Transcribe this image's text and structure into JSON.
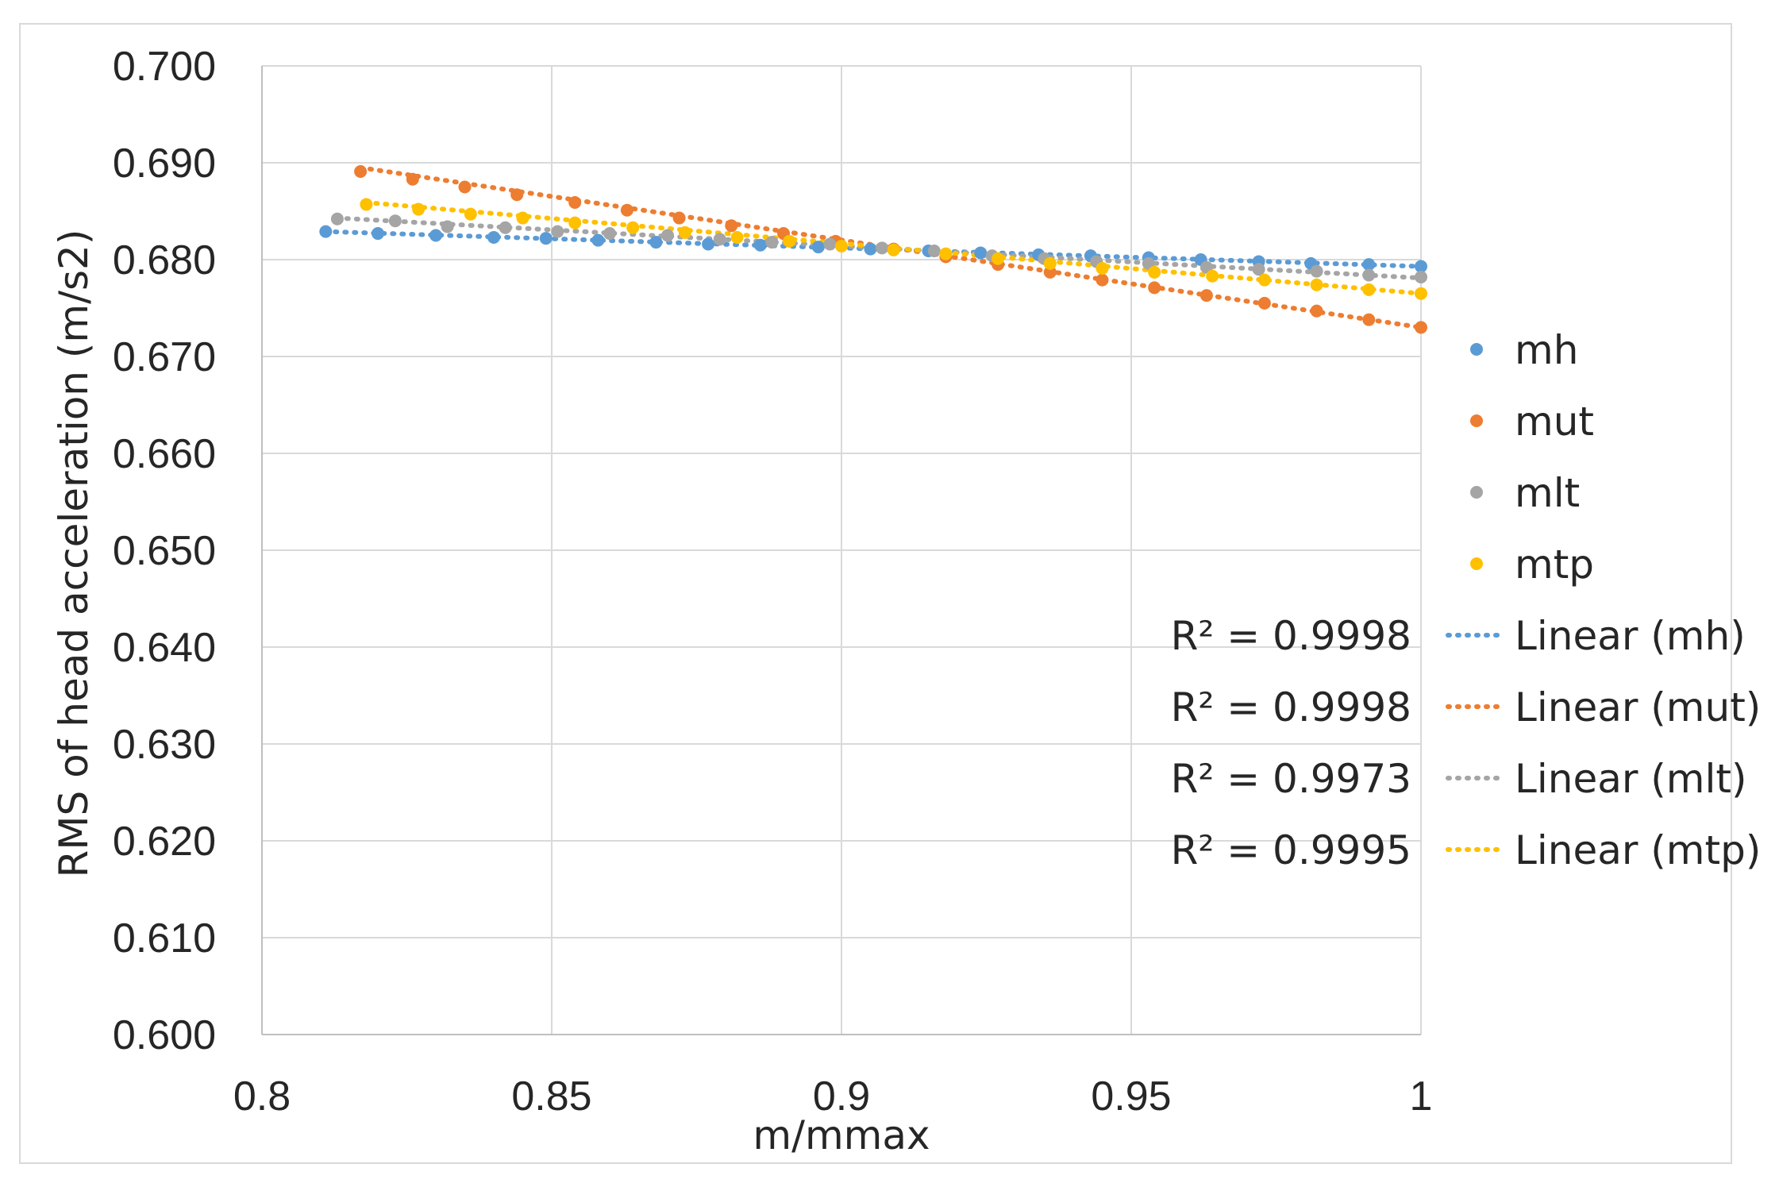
{
  "chart_data": {
    "type": "scatter",
    "title": "",
    "xlabel": "m/mmax",
    "ylabel": "RMS of head acceleration (m/s2)",
    "xlim": [
      0.8,
      1.0
    ],
    "ylim": [
      0.6,
      0.7
    ],
    "xticks": [
      "0.8",
      "0.85",
      "0.9",
      "0.95",
      "1"
    ],
    "yticks": [
      "0.600",
      "0.610",
      "0.620",
      "0.630",
      "0.640",
      "0.650",
      "0.660",
      "0.670",
      "0.680",
      "0.690",
      "0.700"
    ],
    "grid": true,
    "legend_position": "right",
    "series": [
      {
        "name": "mh",
        "color": "#5b9bd5",
        "x": [
          0.811,
          0.82,
          0.83,
          0.84,
          0.849,
          0.858,
          0.868,
          0.877,
          0.886,
          0.896,
          0.905,
          0.915,
          0.924,
          0.934,
          0.943,
          0.953,
          0.962,
          0.972,
          0.981,
          0.991,
          1.0
        ],
        "y": [
          0.6829,
          0.6827,
          0.6825,
          0.6823,
          0.6822,
          0.682,
          0.6818,
          0.6816,
          0.6815,
          0.6813,
          0.6811,
          0.6809,
          0.6807,
          0.6805,
          0.6804,
          0.6802,
          0.68,
          0.6798,
          0.6796,
          0.6795,
          0.6793
        ],
        "trend": {
          "label": "Linear (mh)",
          "r2": "R² = 0.9998",
          "x": [
            0.811,
            1.0
          ],
          "y": [
            0.6829,
            0.6793
          ]
        }
      },
      {
        "name": "mut",
        "color": "#ed7d31",
        "x": [
          0.817,
          0.826,
          0.835,
          0.844,
          0.854,
          0.863,
          0.872,
          0.881,
          0.89,
          0.899,
          0.909,
          0.918,
          0.927,
          0.936,
          0.945,
          0.954,
          0.963,
          0.973,
          0.982,
          0.991,
          1.0
        ],
        "y": [
          0.6891,
          0.6883,
          0.6875,
          0.6867,
          0.6859,
          0.6851,
          0.6843,
          0.6835,
          0.6827,
          0.6819,
          0.6811,
          0.6803,
          0.6795,
          0.6787,
          0.6779,
          0.6771,
          0.6763,
          0.6755,
          0.6747,
          0.6738,
          0.673
        ],
        "trend": {
          "label": "Linear (mut)",
          "r2": "R² = 0.9998",
          "x": [
            0.817,
            1.0
          ],
          "y": [
            0.6895,
            0.673
          ]
        }
      },
      {
        "name": "mlt",
        "color": "#a5a5a5",
        "x": [
          0.813,
          0.823,
          0.832,
          0.842,
          0.851,
          0.86,
          0.87,
          0.879,
          0.888,
          0.898,
          0.907,
          0.916,
          0.926,
          0.935,
          0.944,
          0.953,
          0.963,
          0.972,
          0.982,
          0.991,
          1.0
        ],
        "y": [
          0.6842,
          0.684,
          0.6834,
          0.6833,
          0.6829,
          0.6827,
          0.6825,
          0.6821,
          0.6818,
          0.6816,
          0.6812,
          0.6809,
          0.6804,
          0.6801,
          0.6798,
          0.6796,
          0.6792,
          0.679,
          0.6788,
          0.6784,
          0.6782
        ],
        "trend": {
          "label": "Linear (mlt)",
          "r2": "R² = 0.9973",
          "x": [
            0.813,
            1.0
          ],
          "y": [
            0.6843,
            0.6781
          ]
        }
      },
      {
        "name": "mtp",
        "color": "#ffc000",
        "x": [
          0.818,
          0.827,
          0.836,
          0.845,
          0.854,
          0.864,
          0.873,
          0.882,
          0.891,
          0.9,
          0.909,
          0.918,
          0.927,
          0.936,
          0.945,
          0.954,
          0.964,
          0.973,
          0.982,
          0.991,
          1.0
        ],
        "y": [
          0.6857,
          0.6852,
          0.6847,
          0.6843,
          0.6838,
          0.6833,
          0.6828,
          0.6823,
          0.6819,
          0.6814,
          0.681,
          0.6806,
          0.6801,
          0.6796,
          0.6791,
          0.6787,
          0.6783,
          0.6779,
          0.6774,
          0.6769,
          0.6765
        ],
        "trend": {
          "label": "Linear (mtp)",
          "r2": "R² = 0.9995",
          "x": [
            0.818,
            1.0
          ],
          "y": [
            0.6859,
            0.6765
          ]
        }
      }
    ]
  }
}
